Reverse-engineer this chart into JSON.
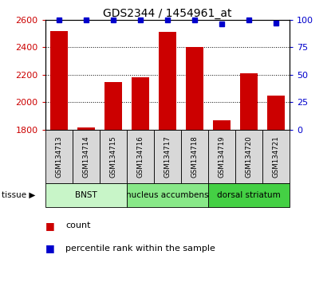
{
  "title": "GDS2344 / 1454961_at",
  "samples": [
    "GSM134713",
    "GSM134714",
    "GSM134715",
    "GSM134716",
    "GSM134717",
    "GSM134718",
    "GSM134719",
    "GSM134720",
    "GSM134721"
  ],
  "counts": [
    2520,
    1815,
    2145,
    2180,
    2510,
    2400,
    1870,
    2210,
    2048
  ],
  "percentiles": [
    100,
    100,
    100,
    100,
    100,
    100,
    96,
    100,
    97
  ],
  "ylim_left": [
    1800,
    2600
  ],
  "ylim_right": [
    0,
    100
  ],
  "yticks_left": [
    1800,
    2000,
    2200,
    2400,
    2600
  ],
  "yticks_right": [
    0,
    25,
    50,
    75,
    100
  ],
  "tissues": [
    {
      "label": "BNST",
      "start": 0,
      "end": 3,
      "color": "#c8f5c8"
    },
    {
      "label": "nucleus accumbens",
      "start": 3,
      "end": 6,
      "color": "#88e888"
    },
    {
      "label": "dorsal striatum",
      "start": 6,
      "end": 9,
      "color": "#44d044"
    }
  ],
  "bar_color": "#cc0000",
  "dot_color": "#0000cc",
  "bar_width": 0.65,
  "grid_color": "#000000",
  "sample_box_color": "#d8d8d8",
  "legend_count_color": "#cc0000",
  "legend_pct_color": "#0000cc"
}
